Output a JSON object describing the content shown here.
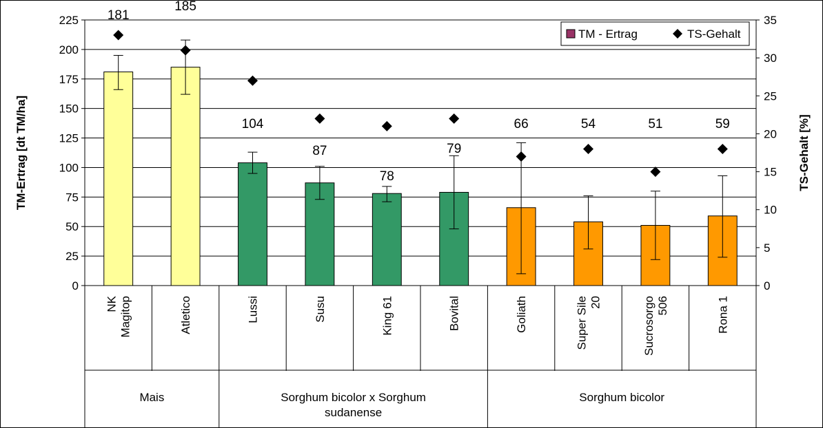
{
  "chart_data": {
    "type": "bar",
    "title": "",
    "ylabel": "TM-Ertrag [dt TM/ha]",
    "y2label": "TS-Gehalt [%]",
    "ylim": [
      0,
      225
    ],
    "y_ticks": [
      "0",
      "25",
      "50",
      "75",
      "100",
      "125",
      "150",
      "175",
      "200",
      "225"
    ],
    "y2lim": [
      0,
      35
    ],
    "y2_ticks": [
      "0",
      "5",
      "10",
      "15",
      "20",
      "25",
      "30",
      "35"
    ],
    "grid": true,
    "legend_position": "top-right",
    "categories": [
      {
        "name": "NK Magitop",
        "lines": [
          "NK",
          "Magitop"
        ]
      },
      {
        "name": "Atletico",
        "lines": [
          "Atletico"
        ]
      },
      {
        "name": "Lussi",
        "lines": [
          "Lussi"
        ]
      },
      {
        "name": "Susu",
        "lines": [
          "Susu"
        ]
      },
      {
        "name": "King 61",
        "lines": [
          "King 61"
        ]
      },
      {
        "name": "Bovital",
        "lines": [
          "Bovital"
        ]
      },
      {
        "name": "Goliath",
        "lines": [
          "Goliath"
        ]
      },
      {
        "name": "Super Sile 20",
        "lines": [
          "Super Sile",
          "20"
        ]
      },
      {
        "name": "Sucrosorgo 506",
        "lines": [
          "Sucrosorgo",
          "506"
        ]
      },
      {
        "name": "Rona 1",
        "lines": [
          "Rona 1"
        ]
      }
    ],
    "groups": [
      {
        "label_lines": [
          "Mais"
        ],
        "span": [
          0,
          1
        ]
      },
      {
        "label_lines": [
          "Sorghum bicolor x  Sorghum",
          "sudanense"
        ],
        "span": [
          2,
          5
        ]
      },
      {
        "label_lines": [
          "Sorghum bicolor"
        ],
        "span": [
          6,
          9
        ]
      }
    ],
    "series": [
      {
        "name": "TM - Ertrag",
        "kind": "bar",
        "axis": "left",
        "values": [
          181,
          185,
          104,
          87,
          78,
          79,
          66,
          54,
          51,
          59
        ],
        "labels": [
          "181",
          "185",
          "104",
          "87",
          "78",
          "79",
          "66",
          "54",
          "51",
          "59"
        ],
        "error_low": [
          166,
          162,
          95,
          73,
          71,
          48,
          10,
          31,
          22,
          24
        ],
        "error_high": [
          195,
          208,
          113,
          101,
          84,
          110,
          121,
          76,
          80,
          93
        ],
        "colors": [
          "#ffff99",
          "#ffff99",
          "#339966",
          "#339966",
          "#339966",
          "#339966",
          "#ff9900",
          "#ff9900",
          "#ff9900",
          "#ff9900"
        ],
        "legend_color": "#993366"
      },
      {
        "name": "TS-Gehalt",
        "kind": "scatter",
        "axis": "right",
        "marker": "diamond",
        "color": "#000000",
        "values": [
          33,
          31,
          27,
          22,
          21,
          22,
          17,
          18,
          15,
          18
        ]
      }
    ]
  }
}
